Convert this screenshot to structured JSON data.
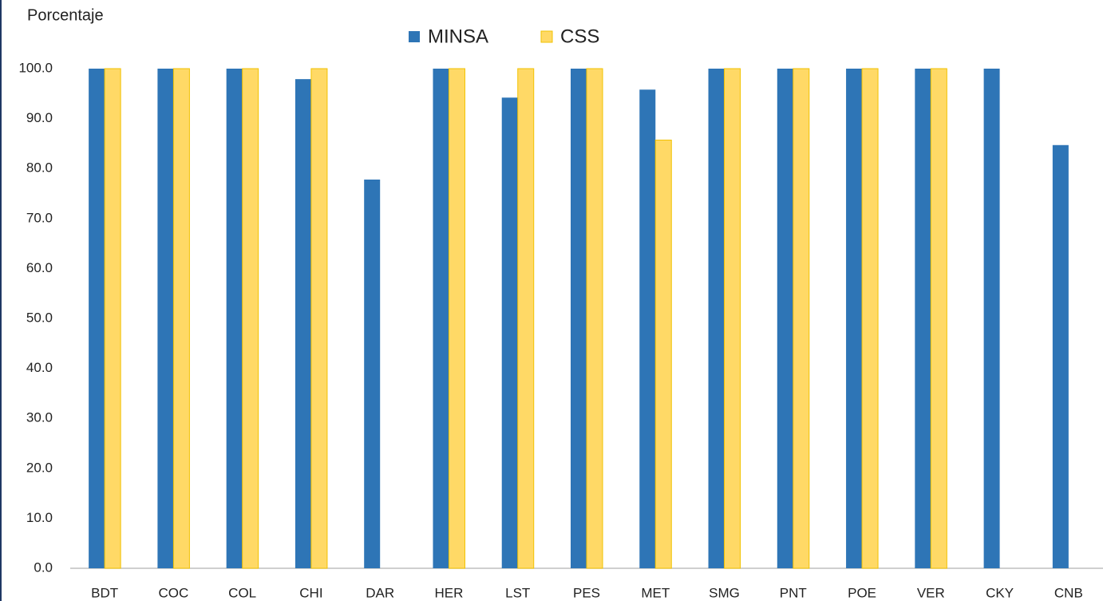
{
  "chart_data": {
    "type": "bar",
    "y_label": "Porcentaje",
    "categories": [
      "BDT",
      "COC",
      "COL",
      "CHI",
      "DAR",
      "HER",
      "LST",
      "PES",
      "MET",
      "SMG",
      "PNT",
      "POE",
      "VER",
      "CKY",
      "CNB"
    ],
    "series": [
      {
        "name": "MINSA",
        "color": "#2e75b6",
        "values": [
          100,
          100,
          100,
          97.9,
          77.8,
          100,
          94.2,
          100,
          95.8,
          100,
          100,
          100,
          100,
          100,
          84.7
        ]
      },
      {
        "name": "CSS",
        "color": "#ffd966",
        "values": [
          100,
          100,
          100,
          100,
          null,
          100,
          100,
          100,
          85.7,
          100,
          100,
          100,
          100,
          null,
          null
        ]
      }
    ],
    "ylim": [
      0,
      100
    ],
    "yticks": [
      {
        "value": 0,
        "label": "0.0"
      },
      {
        "value": 10,
        "label": "10.0"
      },
      {
        "value": 20,
        "label": "20.0"
      },
      {
        "value": 30,
        "label": "30.0"
      },
      {
        "value": 40,
        "label": "40.0"
      },
      {
        "value": 50,
        "label": "50.0"
      },
      {
        "value": 60,
        "label": "60.0"
      },
      {
        "value": 70,
        "label": "70.0"
      },
      {
        "value": 80,
        "label": "80.0"
      },
      {
        "value": 90,
        "label": "90.0"
      },
      {
        "value": 100,
        "label": "100.0"
      }
    ],
    "grid": false,
    "legend": "top"
  }
}
